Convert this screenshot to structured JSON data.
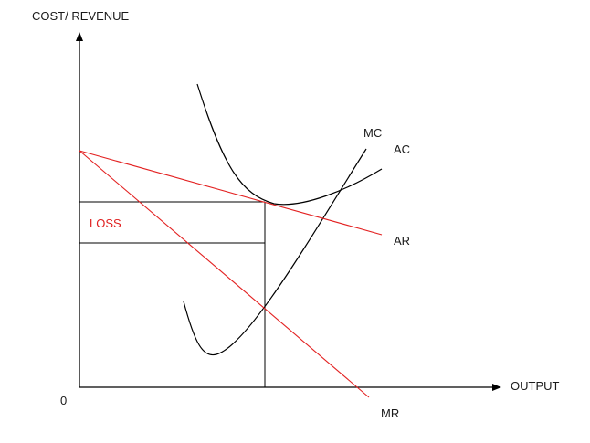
{
  "labels": {
    "y_axis": "COST/ REVENUE",
    "x_axis": "OUTPUT",
    "origin": "0",
    "mc": "MC",
    "ac": "AC",
    "ar": "AR",
    "mr": "MR",
    "loss": "LOSS"
  },
  "colors": {
    "axes": "#000000",
    "cost_curves": "#000000",
    "revenue_curves": "#e32222",
    "loss_label": "#e02020"
  }
}
